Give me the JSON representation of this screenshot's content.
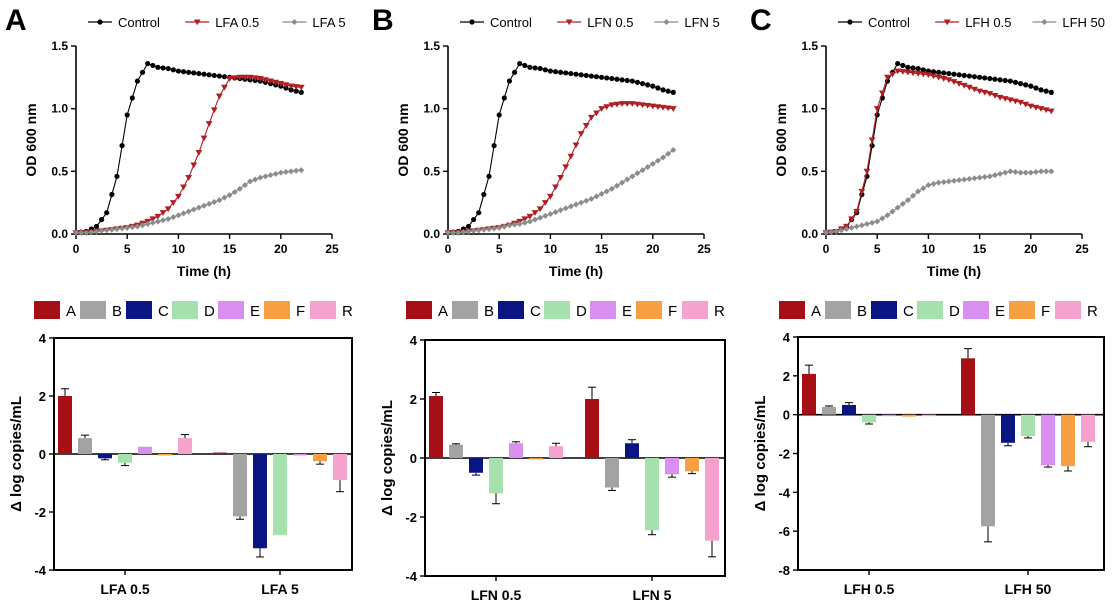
{
  "colors": {
    "control": "#000000",
    "low": "#b01e23",
    "high": "#8c8c8c",
    "A": "#a50f15",
    "B": "#a3a3a3",
    "C": "#0a1483",
    "D": "#a6e0ad",
    "E": "#d88ff0",
    "F": "#f6a043",
    "R": "#f6a2cf"
  },
  "chart_data": [
    {
      "panel": "A",
      "type": "line",
      "xlabel": "Time (h)",
      "ylabel": "OD 600 nm",
      "xlim": [
        0,
        25
      ],
      "ylim": [
        0,
        1.5
      ],
      "x_ticks": [
        "0",
        "5",
        "10",
        "15",
        "20",
        "25"
      ],
      "y_ticks": [
        "0.0",
        "0.5",
        "1.0",
        "1.5"
      ],
      "legend_position": "top",
      "series": [
        {
          "name": "Control",
          "x": [
            0,
            1,
            2,
            3,
            4,
            5,
            6,
            7,
            8,
            9,
            10,
            11,
            12,
            13,
            14,
            15,
            16,
            17,
            18,
            19,
            20,
            21,
            22
          ],
          "y": [
            0.01,
            0.02,
            0.06,
            0.17,
            0.46,
            0.95,
            1.22,
            1.36,
            1.33,
            1.32,
            1.3,
            1.29,
            1.28,
            1.27,
            1.26,
            1.25,
            1.24,
            1.23,
            1.22,
            1.2,
            1.18,
            1.15,
            1.13
          ]
        },
        {
          "name": "LFA 0.5",
          "x": [
            0,
            1,
            2,
            3,
            4,
            5,
            6,
            7,
            8,
            9,
            10,
            11,
            12,
            13,
            14,
            15,
            16,
            17,
            18,
            19,
            20,
            21,
            22
          ],
          "y": [
            0.01,
            0.01,
            0.02,
            0.03,
            0.04,
            0.05,
            0.07,
            0.1,
            0.14,
            0.2,
            0.3,
            0.45,
            0.65,
            0.88,
            1.1,
            1.24,
            1.25,
            1.25,
            1.24,
            1.22,
            1.2,
            1.18,
            1.17
          ]
        },
        {
          "name": "LFA 5",
          "x": [
            0,
            1,
            2,
            3,
            4,
            5,
            6,
            7,
            8,
            9,
            10,
            11,
            12,
            13,
            14,
            15,
            16,
            17,
            18,
            19,
            20,
            21,
            22
          ],
          "y": [
            0.01,
            0.01,
            0.02,
            0.03,
            0.04,
            0.05,
            0.06,
            0.08,
            0.1,
            0.12,
            0.15,
            0.18,
            0.21,
            0.24,
            0.27,
            0.31,
            0.36,
            0.42,
            0.45,
            0.47,
            0.49,
            0.5,
            0.51
          ]
        }
      ]
    },
    {
      "panel": "B",
      "type": "line",
      "xlabel": "Time (h)",
      "ylabel": "OD 600 nm",
      "xlim": [
        0,
        25
      ],
      "ylim": [
        0,
        1.5
      ],
      "x_ticks": [
        "0",
        "5",
        "10",
        "15",
        "20",
        "25"
      ],
      "y_ticks": [
        "0.0",
        "0.5",
        "1.0",
        "1.5"
      ],
      "legend_position": "top",
      "series": [
        {
          "name": "Control",
          "x": [
            0,
            1,
            2,
            3,
            4,
            5,
            6,
            7,
            8,
            9,
            10,
            11,
            12,
            13,
            14,
            15,
            16,
            17,
            18,
            19,
            20,
            21,
            22
          ],
          "y": [
            0.01,
            0.02,
            0.06,
            0.17,
            0.46,
            0.95,
            1.22,
            1.36,
            1.33,
            1.32,
            1.3,
            1.29,
            1.28,
            1.27,
            1.26,
            1.25,
            1.24,
            1.23,
            1.22,
            1.2,
            1.18,
            1.15,
            1.13
          ]
        },
        {
          "name": "LFN 0.5",
          "x": [
            0,
            1,
            2,
            3,
            4,
            5,
            6,
            7,
            8,
            9,
            10,
            11,
            12,
            13,
            14,
            15,
            16,
            17,
            18,
            19,
            20,
            21,
            22
          ],
          "y": [
            0.01,
            0.01,
            0.02,
            0.03,
            0.04,
            0.05,
            0.07,
            0.1,
            0.14,
            0.2,
            0.3,
            0.45,
            0.62,
            0.8,
            0.93,
            1.0,
            1.03,
            1.04,
            1.04,
            1.03,
            1.02,
            1.01,
            1.0
          ]
        },
        {
          "name": "LFN 5",
          "x": [
            0,
            1,
            2,
            3,
            4,
            5,
            6,
            7,
            8,
            9,
            10,
            11,
            12,
            13,
            14,
            15,
            16,
            17,
            18,
            19,
            20,
            21,
            22
          ],
          "y": [
            0.01,
            0.01,
            0.02,
            0.03,
            0.04,
            0.05,
            0.07,
            0.08,
            0.1,
            0.13,
            0.16,
            0.19,
            0.22,
            0.25,
            0.28,
            0.32,
            0.36,
            0.41,
            0.46,
            0.51,
            0.56,
            0.61,
            0.67
          ]
        }
      ]
    },
    {
      "panel": "C",
      "type": "line",
      "xlabel": "Time (h)",
      "ylabel": "OD 600 nm",
      "xlim": [
        0,
        25
      ],
      "ylim": [
        0,
        1.5
      ],
      "x_ticks": [
        "0",
        "5",
        "10",
        "15",
        "20",
        "25"
      ],
      "y_ticks": [
        "0.0",
        "0.5",
        "1.0",
        "1.5"
      ],
      "legend_position": "top",
      "series": [
        {
          "name": "Control",
          "x": [
            0,
            1,
            2,
            3,
            4,
            5,
            6,
            7,
            8,
            9,
            10,
            11,
            12,
            13,
            14,
            15,
            16,
            17,
            18,
            19,
            20,
            21,
            22
          ],
          "y": [
            0.01,
            0.02,
            0.06,
            0.17,
            0.46,
            0.95,
            1.22,
            1.36,
            1.33,
            1.32,
            1.3,
            1.29,
            1.28,
            1.27,
            1.26,
            1.25,
            1.24,
            1.23,
            1.22,
            1.2,
            1.18,
            1.15,
            1.13
          ]
        },
        {
          "name": "LFH 0.5",
          "x": [
            0,
            1,
            2,
            3,
            4,
            5,
            6,
            7,
            8,
            9,
            10,
            11,
            12,
            13,
            14,
            15,
            16,
            17,
            18,
            19,
            20,
            21,
            22
          ],
          "y": [
            0.01,
            0.02,
            0.06,
            0.18,
            0.5,
            1.0,
            1.25,
            1.3,
            1.29,
            1.28,
            1.27,
            1.25,
            1.23,
            1.2,
            1.17,
            1.14,
            1.12,
            1.09,
            1.07,
            1.05,
            1.02,
            1.0,
            0.98
          ]
        },
        {
          "name": "LFH 50",
          "x": [
            0,
            1,
            2,
            3,
            4,
            5,
            6,
            7,
            8,
            9,
            10,
            11,
            12,
            13,
            14,
            15,
            16,
            17,
            18,
            19,
            20,
            21,
            22
          ],
          "y": [
            0.01,
            0.02,
            0.04,
            0.06,
            0.08,
            0.1,
            0.15,
            0.21,
            0.27,
            0.34,
            0.39,
            0.41,
            0.42,
            0.43,
            0.44,
            0.45,
            0.46,
            0.48,
            0.5,
            0.49,
            0.49,
            0.5,
            0.5
          ]
        }
      ]
    },
    {
      "panel": "A",
      "type": "bar",
      "ylabel": "Δ log copies/mL",
      "ylim": [
        -4,
        4
      ],
      "y_ticks": [
        "-4",
        "-2",
        "0",
        "2",
        "4"
      ],
      "categories": [
        "LFA 0.5",
        "LFA 5"
      ],
      "legend": [
        "A",
        "B",
        "C",
        "D",
        "E",
        "F",
        "R"
      ],
      "legend_position": "top",
      "series": [
        {
          "name": "A",
          "values": [
            2.0,
            0.05
          ],
          "errors": [
            0.25,
            0
          ]
        },
        {
          "name": "B",
          "values": [
            0.55,
            -2.15
          ],
          "errors": [
            0.1,
            0.1
          ]
        },
        {
          "name": "C",
          "values": [
            -0.15,
            -3.25
          ],
          "errors": [
            0.05,
            0.3
          ]
        },
        {
          "name": "D",
          "values": [
            -0.3,
            -2.8
          ],
          "errors": [
            0.1,
            0
          ]
        },
        {
          "name": "E",
          "values": [
            0.25,
            0.0
          ],
          "errors": [
            0,
            0
          ]
        },
        {
          "name": "F",
          "values": [
            -0.05,
            -0.25
          ],
          "errors": [
            0,
            0.1
          ]
        },
        {
          "name": "R",
          "values": [
            0.55,
            -0.9
          ],
          "errors": [
            0.12,
            0.4
          ]
        }
      ]
    },
    {
      "panel": "B",
      "type": "bar",
      "ylabel": "Δ log copies/mL",
      "ylim": [
        -4,
        4
      ],
      "y_ticks": [
        "-4",
        "-2",
        "0",
        "2",
        "4"
      ],
      "categories": [
        "LFN 0.5",
        "LFN 5"
      ],
      "legend": [
        "A",
        "B",
        "C",
        "D",
        "E",
        "F",
        "R"
      ],
      "legend_position": "top",
      "series": [
        {
          "name": "A",
          "values": [
            2.1,
            2.0
          ],
          "errors": [
            0.12,
            0.4
          ]
        },
        {
          "name": "B",
          "values": [
            0.45,
            -1.0
          ],
          "errors": [
            0.03,
            0.1
          ]
        },
        {
          "name": "C",
          "values": [
            -0.5,
            0.5
          ],
          "errors": [
            0.08,
            0.12
          ]
        },
        {
          "name": "D",
          "values": [
            -1.2,
            -2.45
          ],
          "errors": [
            0.35,
            0.15
          ]
        },
        {
          "name": "E",
          "values": [
            0.5,
            -0.55
          ],
          "errors": [
            0.05,
            0.1
          ]
        },
        {
          "name": "F",
          "values": [
            -0.05,
            -0.45
          ],
          "errors": [
            0,
            0.08
          ]
        },
        {
          "name": "R",
          "values": [
            0.4,
            -2.8
          ],
          "errors": [
            0.1,
            0.55
          ]
        }
      ]
    },
    {
      "panel": "C",
      "type": "bar",
      "ylabel": "Δ log copies/mL",
      "ylim": [
        -8,
        4
      ],
      "y_ticks": [
        "-8",
        "-6",
        "-4",
        "-2",
        "0",
        "2",
        "4"
      ],
      "categories": [
        "LFH 0.5",
        "LFH 50"
      ],
      "legend": [
        "A",
        "B",
        "C",
        "D",
        "E",
        "F",
        "R"
      ],
      "legend_position": "top",
      "series": [
        {
          "name": "A",
          "values": [
            2.1,
            2.9
          ],
          "errors": [
            0.45,
            0.5
          ]
        },
        {
          "name": "B",
          "values": [
            0.4,
            -5.75
          ],
          "errors": [
            0.05,
            0.8
          ]
        },
        {
          "name": "C",
          "values": [
            0.5,
            -1.45
          ],
          "errors": [
            0.12,
            0.15
          ]
        },
        {
          "name": "D",
          "values": [
            -0.4,
            -1.1
          ],
          "errors": [
            0.08,
            0.1
          ]
        },
        {
          "name": "E",
          "values": [
            0.0,
            -2.6
          ],
          "errors": [
            0,
            0.1
          ]
        },
        {
          "name": "F",
          "values": [
            -0.1,
            -2.65
          ],
          "errors": [
            0,
            0.25
          ]
        },
        {
          "name": "R",
          "values": [
            0.0,
            -1.4
          ],
          "errors": [
            0,
            0.25
          ]
        }
      ]
    }
  ]
}
